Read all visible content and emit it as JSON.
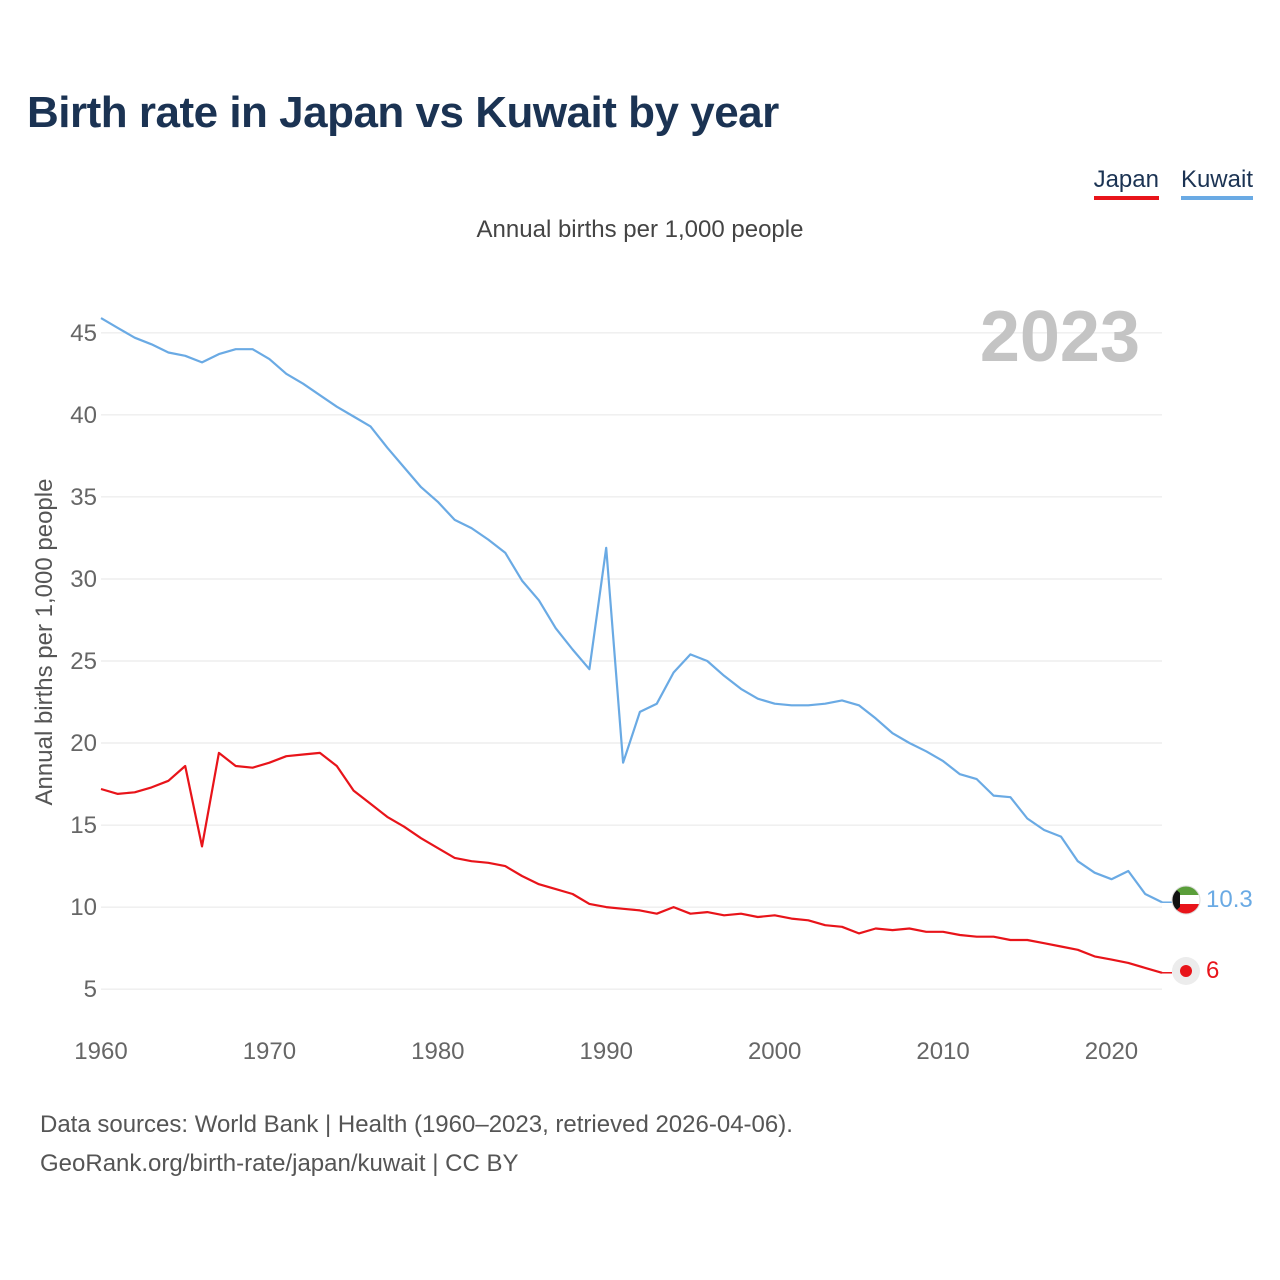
{
  "title": "Birth rate in Japan vs Kuwait by year",
  "subtitle": "Annual births per 1,000 people",
  "legend": {
    "japan": "Japan",
    "kuwait": "Kuwait"
  },
  "year_watermark": "2023",
  "colors": {
    "japan": "#e8141a",
    "kuwait": "#6aaae4",
    "title": "#1b3353"
  },
  "footer": {
    "line1": "Data sources: World Bank | Health (1960–2023, retrieved 2026-04-06).",
    "line2": "GeoRank.org/birth-rate/japan/kuwait | CC BY"
  },
  "chart_data": {
    "type": "line",
    "title": "Birth rate in Japan vs Kuwait by year",
    "xlabel": "",
    "ylabel": "Annual births per 1,000 people",
    "xlim": [
      1960,
      2023
    ],
    "ylim": [
      3,
      47
    ],
    "yticks": [
      5,
      10,
      15,
      20,
      25,
      30,
      35,
      40,
      45
    ],
    "xticks": [
      1960,
      1970,
      1980,
      1990,
      2000,
      2010,
      2020
    ],
    "grid": true,
    "legend_position": "top-right",
    "x": [
      1960,
      1961,
      1962,
      1963,
      1964,
      1965,
      1966,
      1967,
      1968,
      1969,
      1970,
      1971,
      1972,
      1973,
      1974,
      1975,
      1976,
      1977,
      1978,
      1979,
      1980,
      1981,
      1982,
      1983,
      1984,
      1985,
      1986,
      1987,
      1988,
      1989,
      1990,
      1991,
      1992,
      1993,
      1994,
      1995,
      1996,
      1997,
      1998,
      1999,
      2000,
      2001,
      2002,
      2003,
      2004,
      2005,
      2006,
      2007,
      2008,
      2009,
      2010,
      2011,
      2012,
      2013,
      2014,
      2015,
      2016,
      2017,
      2018,
      2019,
      2020,
      2021,
      2022,
      2023
    ],
    "series": [
      {
        "name": "Japan",
        "end_label": "6",
        "values": [
          17.2,
          16.9,
          17.0,
          17.3,
          17.7,
          18.6,
          13.7,
          19.4,
          18.6,
          18.5,
          18.8,
          19.2,
          19.3,
          19.4,
          18.6,
          17.1,
          16.3,
          15.5,
          14.9,
          14.2,
          13.6,
          13.0,
          12.8,
          12.7,
          12.5,
          11.9,
          11.4,
          11.1,
          10.8,
          10.2,
          10.0,
          9.9,
          9.8,
          9.6,
          10.0,
          9.6,
          9.7,
          9.5,
          9.6,
          9.4,
          9.5,
          9.3,
          9.2,
          8.9,
          8.8,
          8.4,
          8.7,
          8.6,
          8.7,
          8.5,
          8.5,
          8.3,
          8.2,
          8.2,
          8.0,
          8.0,
          7.8,
          7.6,
          7.4,
          7.0,
          6.8,
          6.6,
          6.3,
          6.0
        ]
      },
      {
        "name": "Kuwait",
        "end_label": "10.3",
        "values": [
          45.9,
          45.3,
          44.7,
          44.3,
          43.8,
          43.6,
          43.2,
          43.7,
          44.0,
          44.0,
          43.4,
          42.5,
          41.9,
          41.2,
          40.5,
          39.9,
          39.3,
          38.0,
          36.8,
          35.6,
          34.7,
          33.6,
          33.1,
          32.4,
          31.6,
          29.9,
          28.7,
          27.0,
          25.7,
          24.5,
          31.9,
          18.8,
          21.9,
          22.4,
          24.3,
          25.4,
          25.0,
          24.1,
          23.3,
          22.7,
          22.4,
          22.3,
          22.3,
          22.4,
          22.6,
          22.3,
          21.5,
          20.6,
          20.0,
          19.5,
          18.9,
          18.1,
          17.8,
          16.8,
          16.7,
          15.4,
          14.7,
          14.3,
          12.8,
          12.1,
          11.7,
          12.2,
          10.8,
          10.3
        ]
      }
    ]
  }
}
